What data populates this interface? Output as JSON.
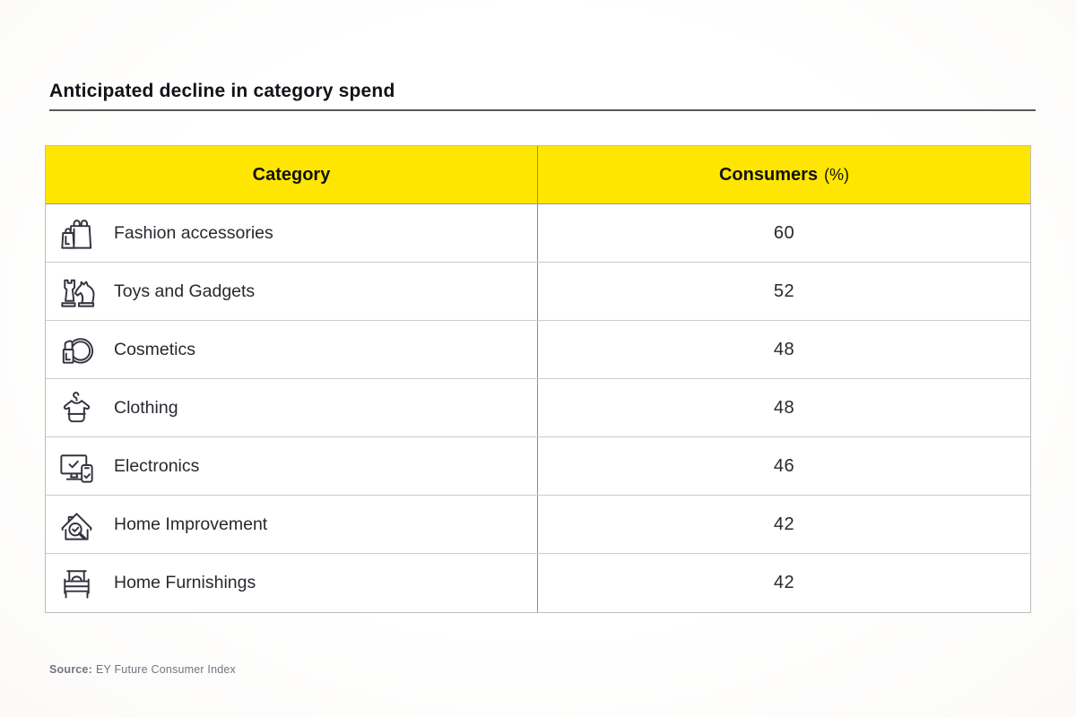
{
  "page": {
    "title": "Anticipated decline in category spend",
    "source_label": "Source:",
    "source_text": "EY Future Consumer Index"
  },
  "table": {
    "columns": [
      {
        "label": "Category"
      },
      {
        "label": "Consumers",
        "unit": "(%)"
      }
    ],
    "rows": [
      {
        "icon": "shopping-bags-icon",
        "category": "Fashion accessories",
        "consumers": "60"
      },
      {
        "icon": "chess-pieces-icon",
        "category": "Toys and Gadgets",
        "consumers": "52"
      },
      {
        "icon": "lipstick-mirror-icon",
        "category": "Cosmetics",
        "consumers": "48"
      },
      {
        "icon": "clothes-hanger-icon",
        "category": "Clothing",
        "consumers": "48"
      },
      {
        "icon": "monitor-phone-icon",
        "category": "Electronics",
        "consumers": "46"
      },
      {
        "icon": "house-magnifier-icon",
        "category": "Home Improvement",
        "consumers": "42"
      },
      {
        "icon": "bed-icon",
        "category": "Home Furnishings",
        "consumers": "42"
      }
    ]
  },
  "colors": {
    "header_background": "#FFE600",
    "icon_stroke": "#33333f",
    "text_dark": "#28282f",
    "source_gray": "#747480"
  },
  "chart_data": {
    "type": "table",
    "title": "Anticipated decline in category spend",
    "columns": [
      "Category",
      "Consumers (%)"
    ],
    "categories": [
      "Fashion accessories",
      "Toys and Gadgets",
      "Cosmetics",
      "Clothing",
      "Electronics",
      "Home Improvement",
      "Home Furnishings"
    ],
    "values": [
      60,
      52,
      48,
      48,
      46,
      42,
      42
    ],
    "source": "Source: EY Future Consumer Index",
    "legend_position": "none",
    "grid": "row-dividers"
  }
}
